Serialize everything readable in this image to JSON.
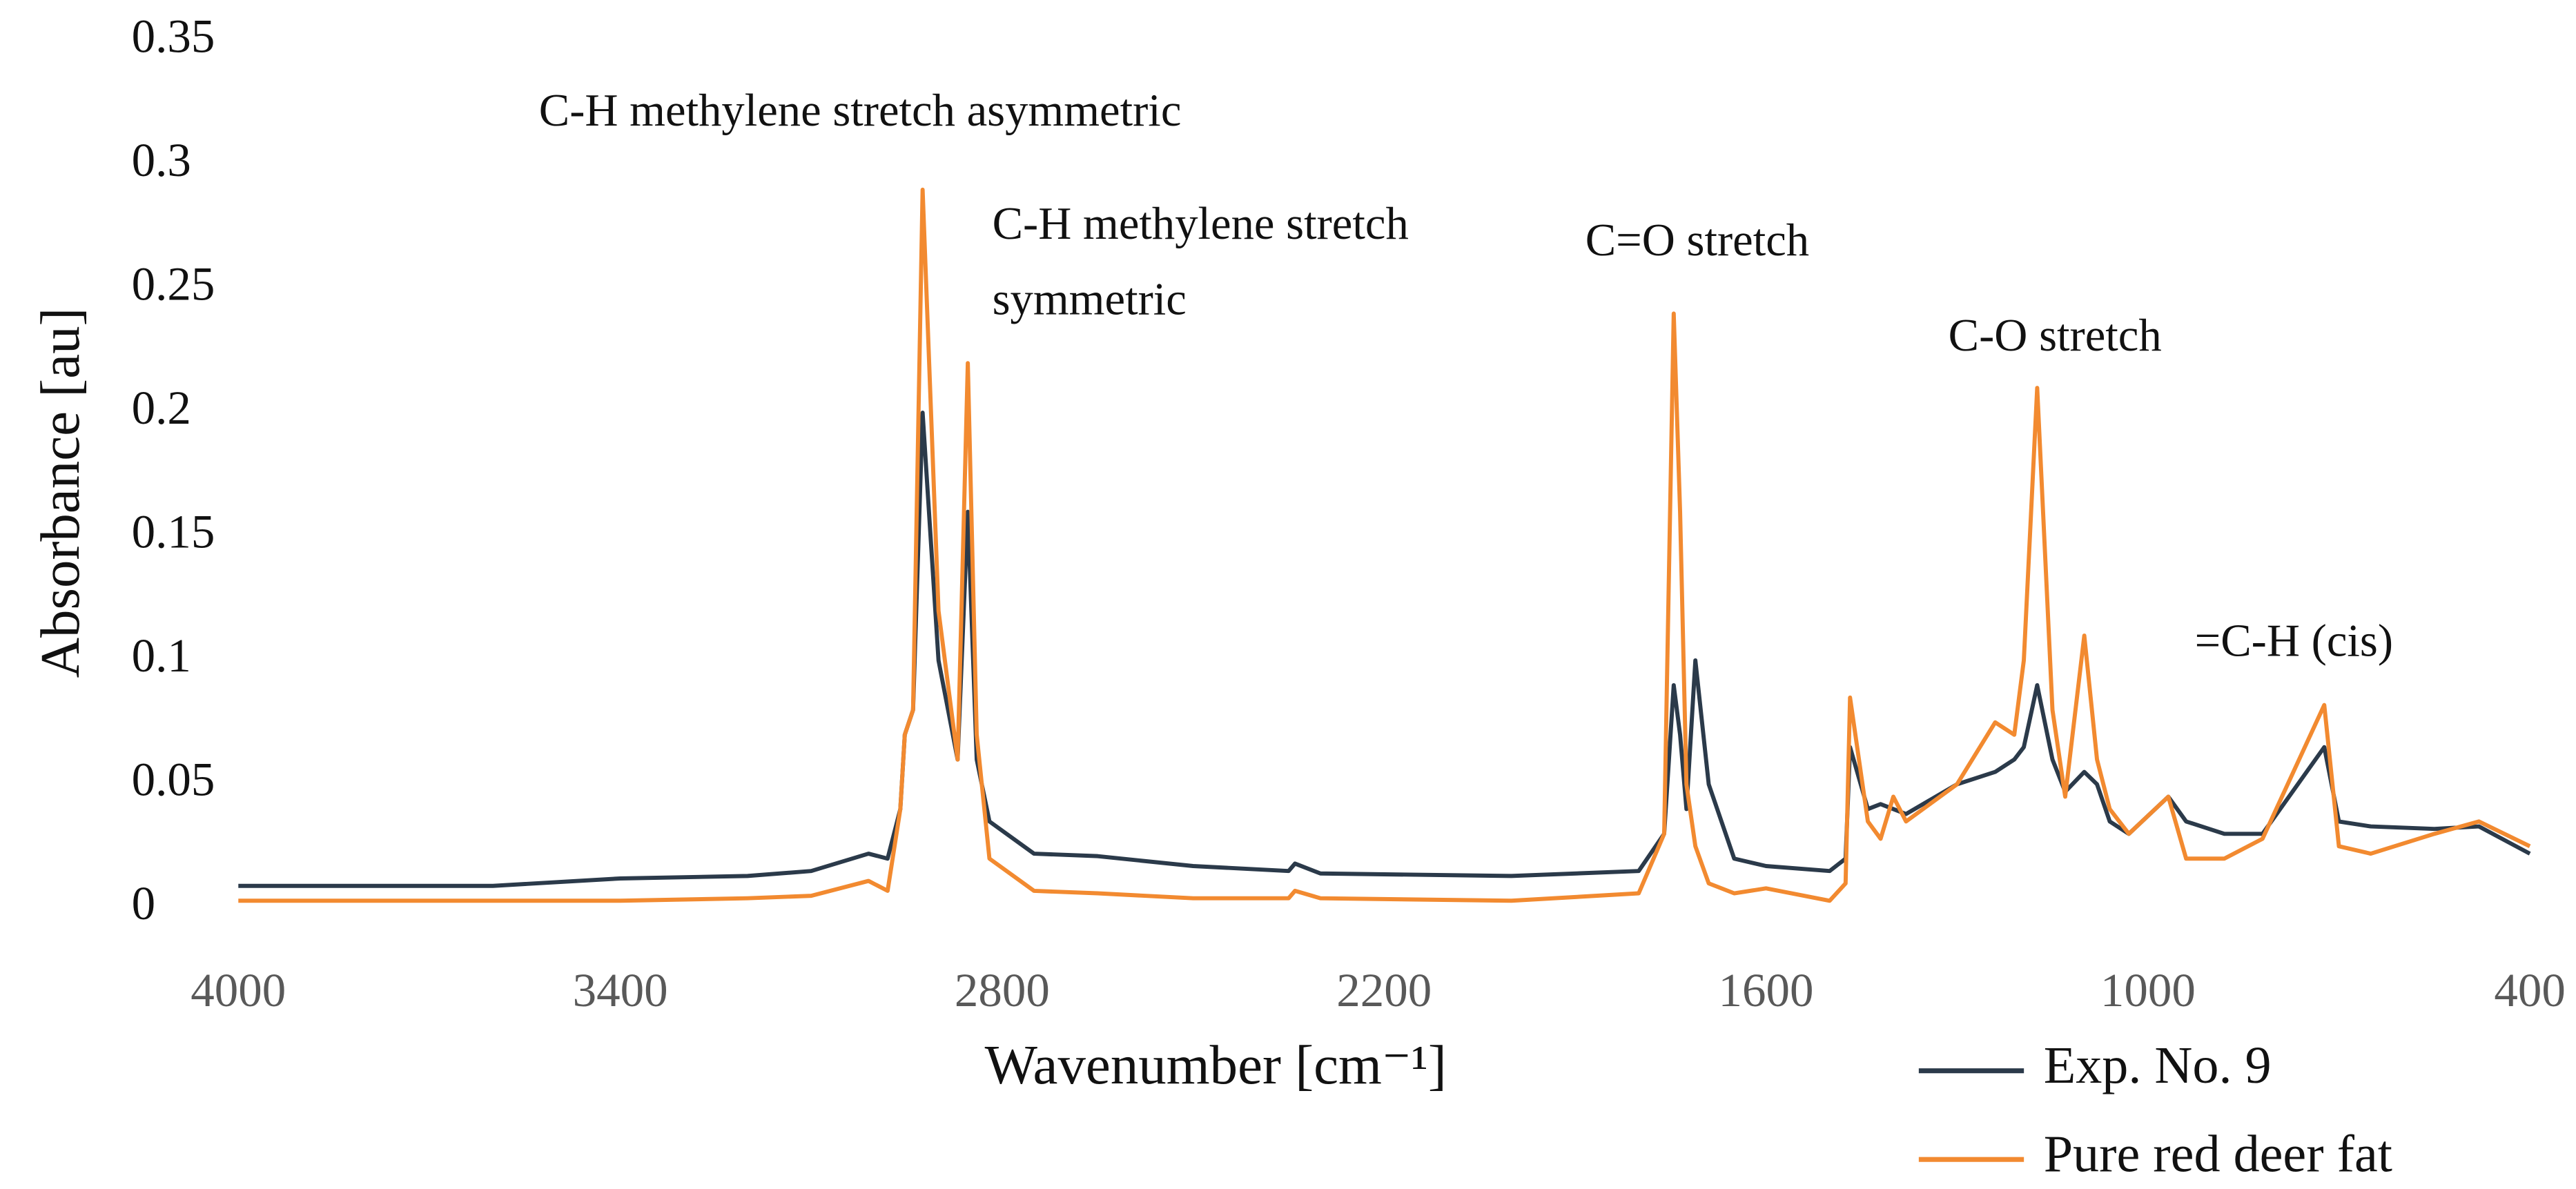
{
  "chart_data": {
    "type": "line",
    "xlabel": "Wavenumber [cm⁻¹]",
    "ylabel": "Absorbance [au]",
    "xlim": [
      4000,
      400
    ],
    "xticks": [
      4000,
      3400,
      2800,
      2200,
      1600,
      1000,
      400
    ],
    "ylim": [
      0,
      0.35
    ],
    "yticks": [
      0,
      0.05,
      0.1,
      0.15,
      0.2,
      0.25,
      0.3,
      0.35
    ],
    "grid": false,
    "legend": "bottom-right",
    "annotations": [
      [
        "C-H methylene stretch asymmetric"
      ],
      [
        "C-H methylene stretch",
        "symmetric"
      ],
      [
        "C=O stretch"
      ],
      [
        "C-O stretch"
      ],
      [
        "=C-H (cis)"
      ]
    ],
    "x": [
      4000,
      3600,
      3400,
      3200,
      3100,
      3010,
      2980,
      2960,
      2953,
      2940,
      2925,
      2900,
      2870,
      2854,
      2840,
      2820,
      2750,
      2650,
      2500,
      2350,
      2340,
      2300,
      2000,
      1800,
      1760,
      1745,
      1735,
      1725,
      1711,
      1690,
      1650,
      1600,
      1500,
      1475,
      1468,
      1440,
      1420,
      1400,
      1380,
      1300,
      1240,
      1210,
      1195,
      1174,
      1150,
      1130,
      1100,
      1080,
      1060,
      1030,
      968,
      940,
      880,
      820,
      723,
      700,
      650,
      550,
      480,
      400
    ],
    "series": [
      {
        "name": "Exp. No. 9",
        "color": "#2b3a4a",
        "values": [
          0.009,
          0.009,
          0.012,
          0.013,
          0.015,
          0.022,
          0.02,
          0.04,
          0.07,
          0.08,
          0.2,
          0.1,
          0.06,
          0.16,
          0.06,
          0.035,
          0.022,
          0.021,
          0.017,
          0.015,
          0.018,
          0.014,
          0.013,
          0.015,
          0.03,
          0.09,
          0.07,
          0.04,
          0.1,
          0.05,
          0.02,
          0.017,
          0.015,
          0.02,
          0.065,
          0.04,
          0.042,
          0.04,
          0.038,
          0.05,
          0.055,
          0.06,
          0.065,
          0.09,
          0.06,
          0.047,
          0.055,
          0.05,
          0.035,
          0.03,
          0.045,
          0.035,
          0.03,
          0.03,
          0.065,
          0.035,
          0.033,
          0.032,
          0.033,
          0.022
        ]
      },
      {
        "name": "Pure red deer fat",
        "color": "#f28a30",
        "values": [
          0.003,
          0.003,
          0.003,
          0.004,
          0.005,
          0.011,
          0.007,
          0.04,
          0.07,
          0.08,
          0.29,
          0.12,
          0.06,
          0.22,
          0.07,
          0.02,
          0.007,
          0.006,
          0.004,
          0.004,
          0.007,
          0.004,
          0.003,
          0.006,
          0.03,
          0.24,
          0.16,
          0.05,
          0.025,
          0.01,
          0.006,
          0.008,
          0.003,
          0.01,
          0.085,
          0.035,
          0.028,
          0.045,
          0.035,
          0.05,
          0.075,
          0.07,
          0.1,
          0.21,
          0.08,
          0.045,
          0.11,
          0.06,
          0.04,
          0.03,
          0.045,
          0.02,
          0.02,
          0.028,
          0.082,
          0.025,
          0.022,
          0.03,
          0.035,
          0.025
        ]
      }
    ]
  }
}
